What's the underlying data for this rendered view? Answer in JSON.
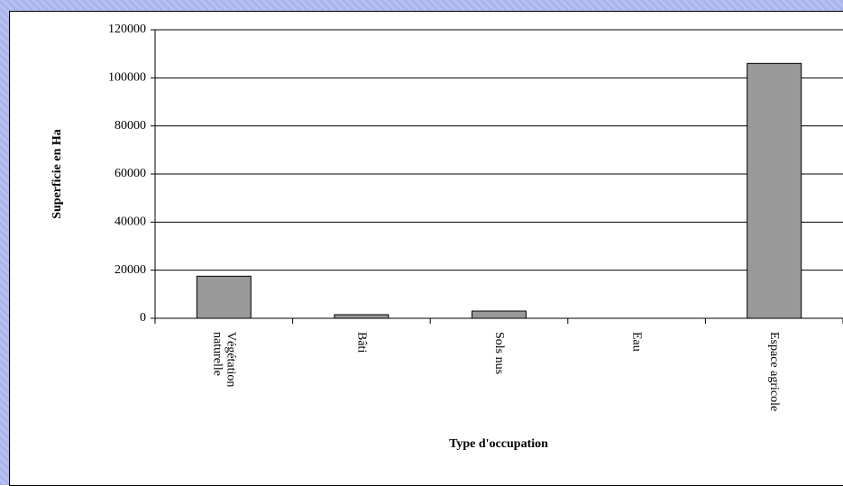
{
  "chart_data": {
    "type": "bar",
    "categories": [
      "Végétation naturelle",
      "Bâti",
      "Sols nus",
      "Eau",
      "Espace agricole"
    ],
    "values": [
      17500,
      1500,
      3000,
      0,
      106000
    ],
    "color": "#999999",
    "ylim": [
      0,
      120000
    ],
    "yticks": [
      0,
      20000,
      40000,
      60000,
      80000,
      100000,
      120000
    ],
    "grid": true,
    "y_label": "Superficie en Ha",
    "x_label": "Type d'occupation"
  }
}
